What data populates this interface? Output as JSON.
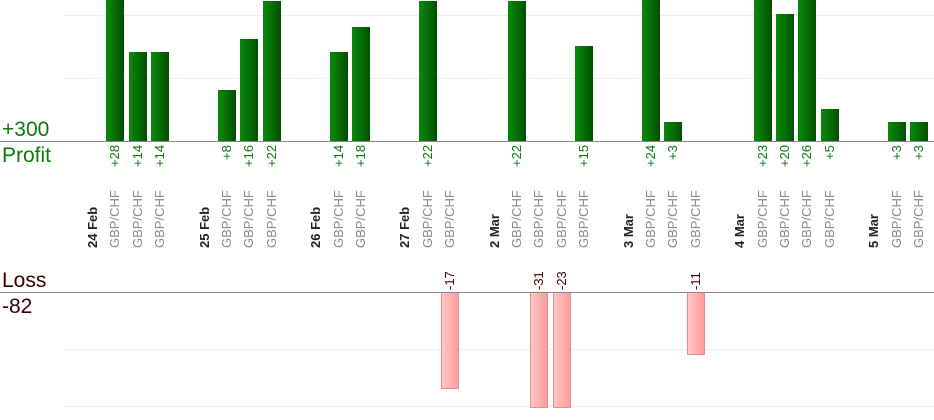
{
  "chart_data": {
    "type": "bar",
    "profit_label": "Profit",
    "profit_total": "+300",
    "loss_label": "Loss",
    "loss_total": "-82",
    "colors": {
      "profit": "#006400",
      "loss": "#ffaaaa",
      "profit_text": "#0a7a0a",
      "loss_text": "#3a0000"
    },
    "profit_ylim": [
      0,
      22
    ],
    "loss_ylim": [
      0,
      20
    ],
    "grid": true,
    "groups": [
      {
        "date": "24 Feb",
        "trades": [
          {
            "pair": "GBP/CHF",
            "value": 28
          },
          {
            "pair": "GBP/CHF",
            "value": 14
          },
          {
            "pair": "GBP/CHF",
            "value": 14
          }
        ]
      },
      {
        "date": "25 Feb",
        "trades": [
          {
            "pair": "GBP/CHF",
            "value": 8
          },
          {
            "pair": "GBP/CHF",
            "value": 16
          },
          {
            "pair": "GBP/CHF",
            "value": 22
          }
        ]
      },
      {
        "date": "26 Feb",
        "trades": [
          {
            "pair": "GBP/CHF",
            "value": 14
          },
          {
            "pair": "GBP/CHF",
            "value": 18
          }
        ]
      },
      {
        "date": "27 Feb",
        "trades": [
          {
            "pair": "GBP/CHF",
            "value": 22
          },
          {
            "pair": "GBP/CHF",
            "value": -17
          }
        ]
      },
      {
        "date": "2 Mar",
        "trades": [
          {
            "pair": "GBP/CHF",
            "value": 22
          },
          {
            "pair": "GBP/CHF",
            "value": -31
          },
          {
            "pair": "GBP/CHF",
            "value": -23
          },
          {
            "pair": "GBP/CHF",
            "value": 15
          }
        ]
      },
      {
        "date": "3 Mar",
        "trades": [
          {
            "pair": "GBP/CHF",
            "value": 24
          },
          {
            "pair": "GBP/CHF",
            "value": 3
          },
          {
            "pair": "GBP/CHF",
            "value": -11
          }
        ]
      },
      {
        "date": "4 Mar",
        "trades": [
          {
            "pair": "GBP/CHF",
            "value": 23
          },
          {
            "pair": "GBP/CHF",
            "value": 20
          },
          {
            "pair": "GBP/CHF",
            "value": 26
          },
          {
            "pair": "GBP/CHF",
            "value": 5
          }
        ]
      },
      {
        "date": "5 Mar",
        "trades": [
          {
            "pair": "GBP/CHF",
            "value": 3
          },
          {
            "pair": "GBP/CHF",
            "value": 3
          }
        ]
      }
    ]
  }
}
